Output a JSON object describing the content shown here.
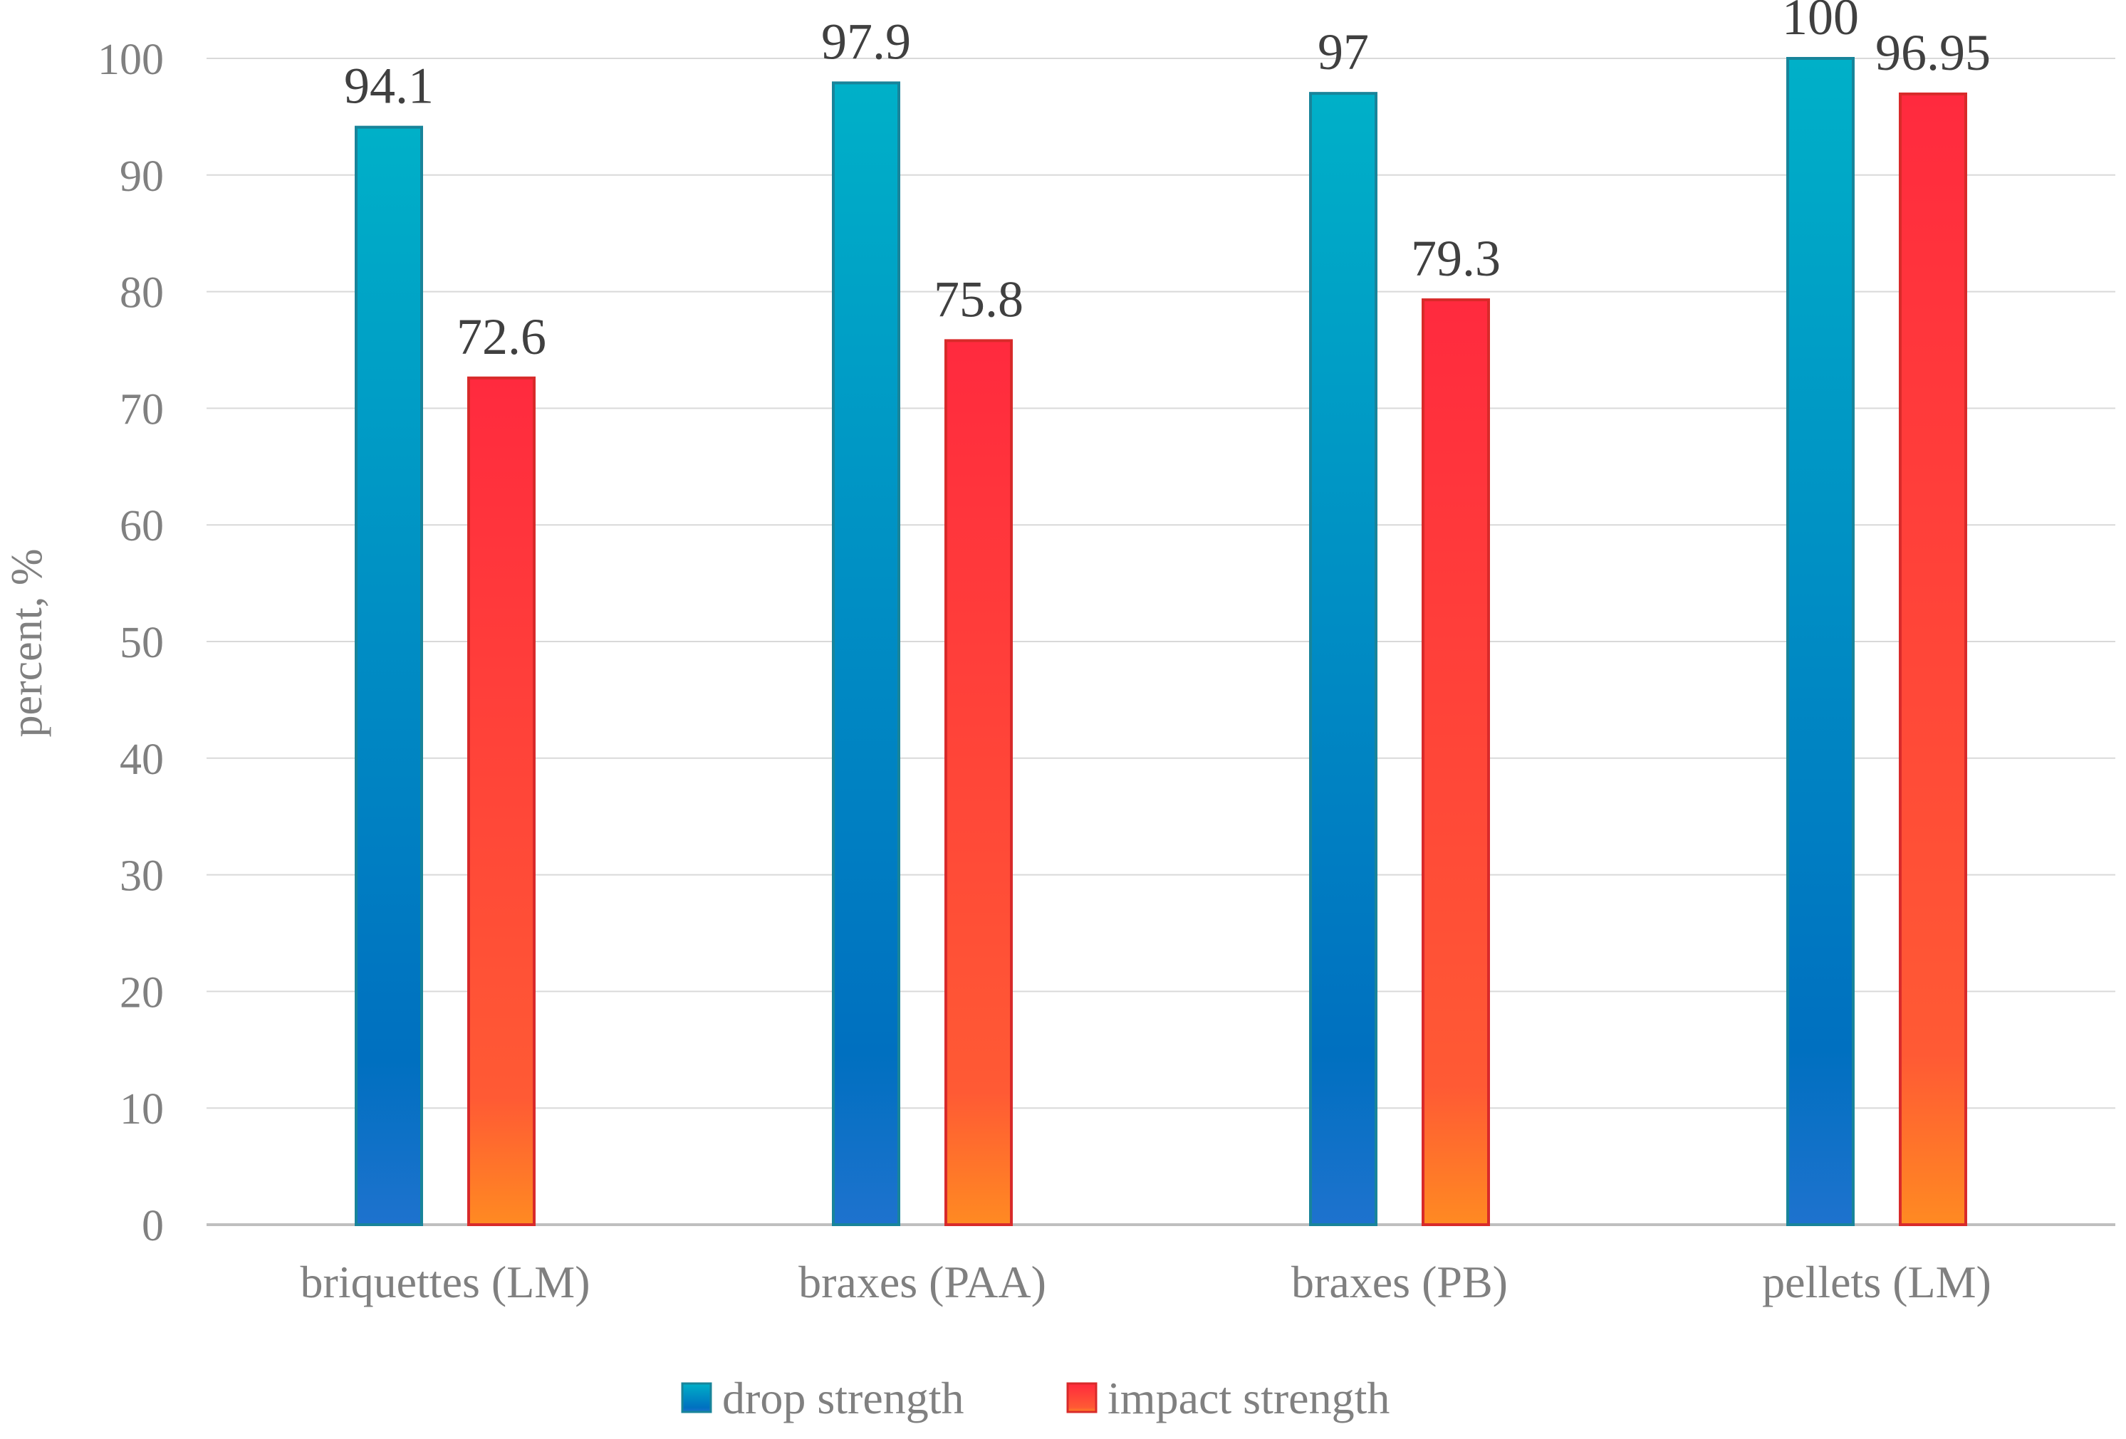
{
  "chart_data": {
    "type": "bar",
    "title": "",
    "xlabel": "",
    "ylabel": "percent, %",
    "ylim": [
      0,
      100
    ],
    "yticks": [
      0,
      10,
      20,
      30,
      40,
      50,
      60,
      70,
      80,
      90,
      100
    ],
    "grid": true,
    "legend_position": "bottom-center",
    "categories": [
      "briquettes (LM)",
      "braxes (PAA)",
      "braxes (PB)",
      "pellets (LM)"
    ],
    "series": [
      {
        "name": "drop strength",
        "values": [
          94.1,
          97.9,
          97,
          100
        ],
        "labels": [
          "94.1",
          "97.9",
          "97",
          "100"
        ],
        "color_top": "#00B0C8",
        "color_mid": "#0070C0",
        "color_bottom": "#1E72CE",
        "border_color": "#18849A"
      },
      {
        "name": "impact strength",
        "values": [
          72.6,
          75.8,
          79.3,
          96.95
        ],
        "labels": [
          "72.6",
          "75.8",
          "79.3",
          "96.95"
        ],
        "color_top": "#FF2A3E",
        "color_mid": "#FF5A34",
        "color_bottom": "#FF8A22",
        "border_color": "#D82A2A"
      }
    ],
    "colors": {
      "grid": "#D9D9D9",
      "axis": "#BFBFBF",
      "tick_text": "#808080",
      "label_text": "#404040"
    }
  }
}
